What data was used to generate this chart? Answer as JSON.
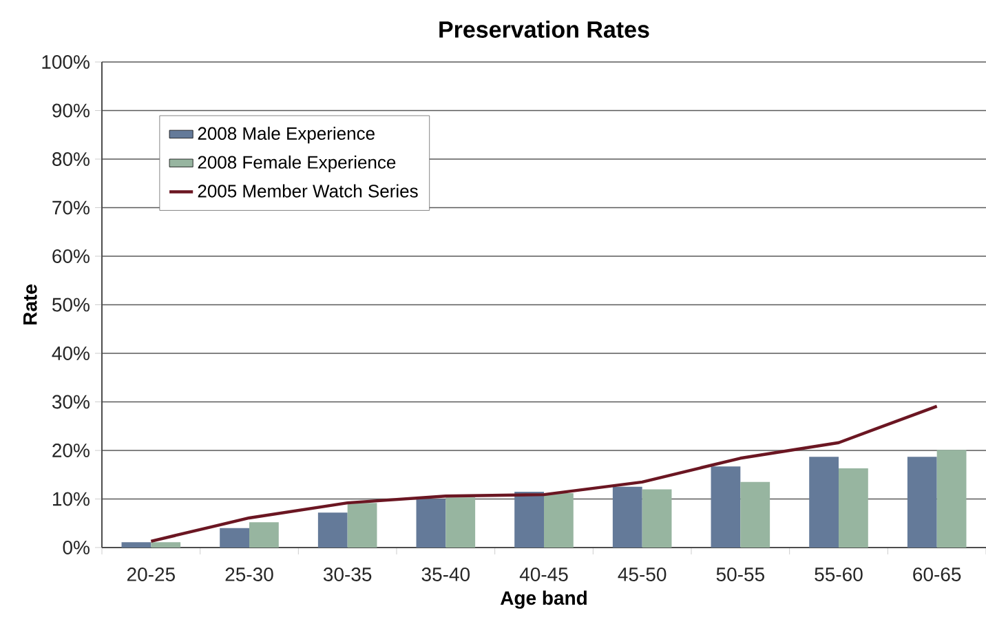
{
  "chart_data": {
    "type": "bar",
    "title": "Preservation Rates",
    "xlabel": "Age band",
    "ylabel": "Rate",
    "categories": [
      "20-25",
      "25-30",
      "30-35",
      "35-40",
      "40-45",
      "45-50",
      "50-55",
      "55-60",
      "60-65"
    ],
    "series": [
      {
        "name": "2008 Male Experience",
        "color": "#647a99",
        "values": [
          1.1,
          4.0,
          7.2,
          10.0,
          11.5,
          12.5,
          16.7,
          18.7,
          18.7
        ]
      },
      {
        "name": "2008 Female Experience",
        "color": "#97b5a0",
        "values": [
          1.1,
          5.2,
          9.2,
          10.3,
          11.2,
          12.0,
          13.5,
          16.3,
          20.1
        ]
      },
      {
        "name": "2005 Member Watch Series",
        "type": "line",
        "color": "#6b1622",
        "values": [
          1.3,
          6.1,
          9.2,
          10.6,
          10.9,
          13.5,
          18.4,
          21.6,
          29.1
        ]
      }
    ],
    "ylim": [
      0,
      100
    ],
    "yticks": [
      {
        "value": 0,
        "label": "0%"
      },
      {
        "value": 10,
        "label": "10%"
      },
      {
        "value": 20,
        "label": "20%"
      },
      {
        "value": 30,
        "label": "30%"
      },
      {
        "value": 40,
        "label": "40%"
      },
      {
        "value": 50,
        "label": "50%"
      },
      {
        "value": 60,
        "label": "60%"
      },
      {
        "value": 70,
        "label": "70%"
      },
      {
        "value": 80,
        "label": "80%"
      },
      {
        "value": 90,
        "label": "90%"
      },
      {
        "value": 100,
        "label": "100%"
      }
    ],
    "grid": "y",
    "legend": "top left"
  }
}
